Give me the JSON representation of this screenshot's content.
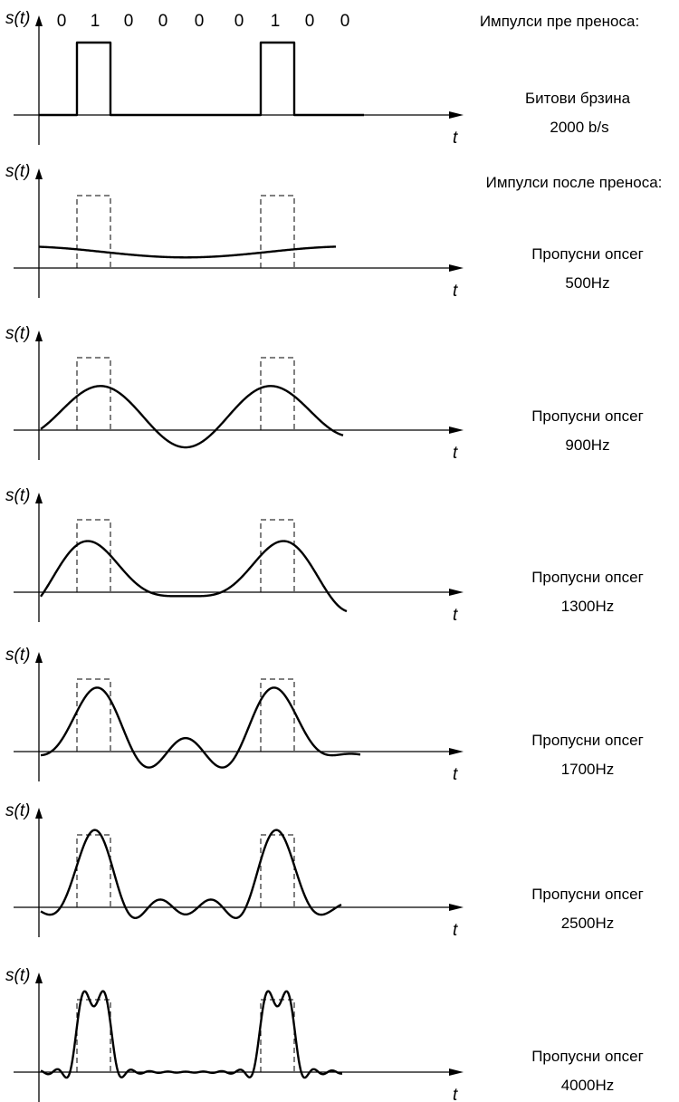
{
  "bits": [
    "0",
    "1",
    "0",
    "0",
    "0",
    "0",
    "1",
    "0",
    "0"
  ],
  "axis": {
    "y_label": "s(t)",
    "x_label": "t"
  },
  "header_before": "Импулси пре преноса:",
  "header_after": "Импулси после преноса:",
  "bitrate": {
    "label": "Битови брзина",
    "value": "2000 b/s"
  },
  "panels": [
    {
      "type": "digital",
      "caption": null,
      "value": null
    },
    {
      "type": "filtered",
      "harmonics": 1,
      "caption": "Пропусни опсег",
      "value": "500Hz"
    },
    {
      "type": "filtered",
      "harmonics": 2,
      "caption": "Пропусни опсег",
      "value": "900Hz"
    },
    {
      "type": "filtered",
      "harmonics": 3,
      "caption": "Пропусни опсег",
      "value": "1300Hz"
    },
    {
      "type": "filtered",
      "harmonics": 4,
      "caption": "Пропусни опсег",
      "value": "1700Hz"
    },
    {
      "type": "filtered",
      "harmonics": 6,
      "caption": "Пропусни опсег",
      "value": "2500Hz"
    },
    {
      "type": "filtered",
      "harmonics": 16,
      "caption": "Пропусни опсег",
      "value": "4000Hz"
    }
  ]
}
